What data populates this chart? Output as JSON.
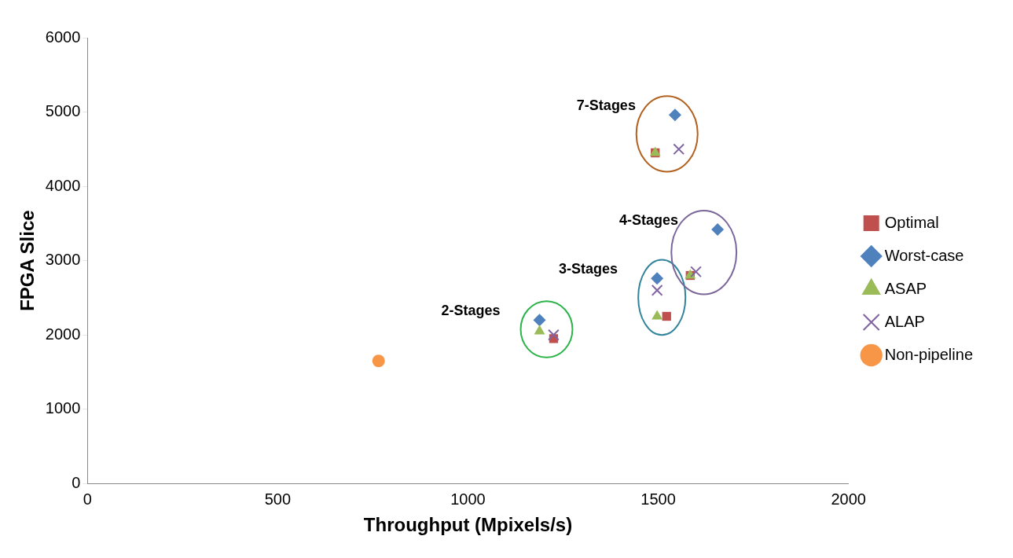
{
  "chart_data": {
    "type": "scatter",
    "xlabel": "Throughput (Mpixels/s)",
    "ylabel": "FPGA Slice",
    "xlim": [
      0,
      2000
    ],
    "xticks": [
      0,
      500,
      1000,
      1500,
      2000
    ],
    "ylim": [
      0,
      6000
    ],
    "yticks": [
      0,
      1000,
      2000,
      3000,
      4000,
      5000,
      6000
    ],
    "grid": false,
    "legend": "right",
    "series": [
      {
        "name": "Optimal",
        "color": "#c0504d",
        "marker": "square",
        "x": [
          1225,
          1522,
          1584,
          1492
        ],
        "values": [
          1950,
          2250,
          2800,
          4450
        ]
      },
      {
        "name": "Worst-case",
        "color": "#4f81bd",
        "marker": "diamond",
        "x": [
          1188,
          1497,
          1656,
          1544
        ],
        "values": [
          2200,
          2760,
          3420,
          4960
        ]
      },
      {
        "name": "ASAP",
        "color": "#9bbb59",
        "marker": "triangle",
        "x": [
          1188,
          1497,
          1584,
          1492
        ],
        "values": [
          2050,
          2250,
          2800,
          4450
        ]
      },
      {
        "name": "ALAP",
        "color": "#8064a2",
        "marker": "cross",
        "x": [
          1225,
          1497,
          1599,
          1554
        ],
        "values": [
          2000,
          2600,
          2850,
          4500
        ]
      },
      {
        "name": "Non-pipeline",
        "color": "#f79646",
        "marker": "circle",
        "x": [
          765
        ],
        "values": [
          1650
        ]
      }
    ],
    "annotations": [
      {
        "text": "2-Stages",
        "x": 1188,
        "y": 2200
      },
      {
        "text": "3-Stages",
        "x": 1497,
        "y": 2760
      },
      {
        "text": "4-Stages",
        "x": 1656,
        "y": 3420
      },
      {
        "text": "7-Stages",
        "x": 1544,
        "y": 4960
      }
    ]
  }
}
